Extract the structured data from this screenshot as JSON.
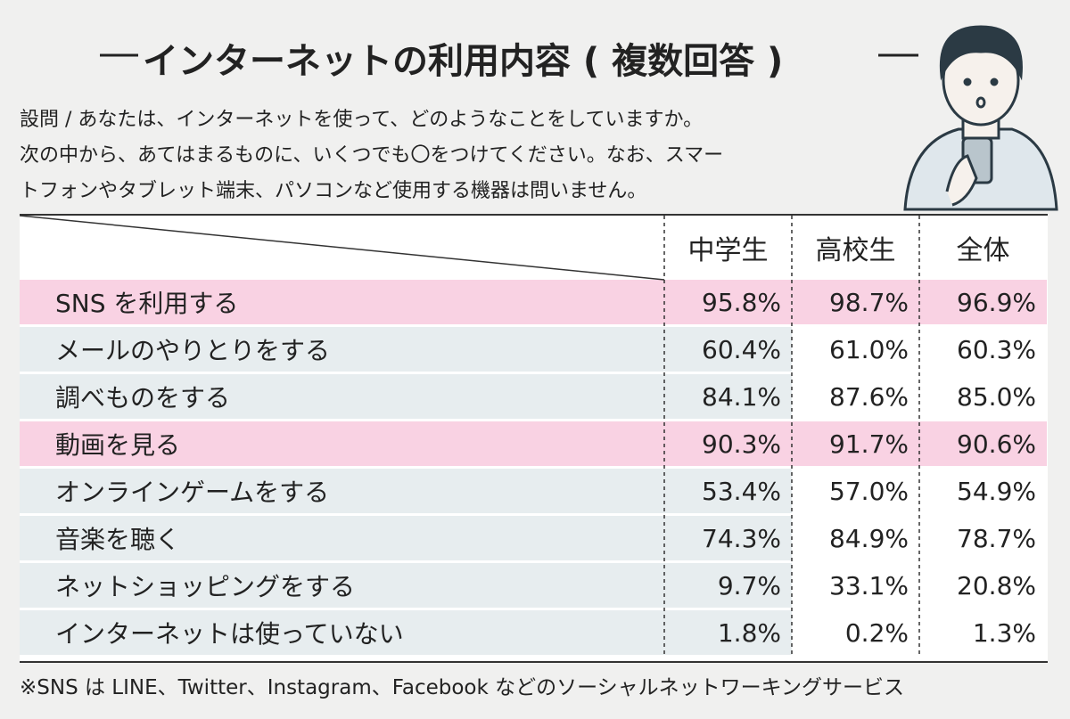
{
  "header": {
    "title": "インターネットの利用内容 ( 複数回答 )",
    "question": [
      "設問 / あなたは、インターネットを使って、どのようなことをしていますか。",
      "次の中から、あてはまるものに、いくつでも〇をつけてください。なお、スマー",
      "トフォンやタブレット端末、パソコンなど使用する機器は問いません。"
    ]
  },
  "table": {
    "columns": [
      "中学生",
      "高校生",
      "全体"
    ],
    "rows": [
      {
        "label": "SNS を利用する",
        "values": [
          "95.8%",
          "98.7%",
          "96.9%"
        ],
        "background": "#f9d2e3"
      },
      {
        "label": "メールのやりとりをする",
        "values": [
          "60.4%",
          "61.0%",
          "60.3%"
        ],
        "background": "#e7edef"
      },
      {
        "label": "調べものをする",
        "values": [
          "84.1%",
          "87.6%",
          "85.0%"
        ],
        "background": "#e7edef"
      },
      {
        "label": "動画を見る",
        "values": [
          "90.3%",
          "91.7%",
          "90.6%"
        ],
        "background": "#f9d2e3"
      },
      {
        "label": "オンラインゲームをする",
        "values": [
          "53.4%",
          "57.0%",
          "54.9%"
        ],
        "background": "#e7edef"
      },
      {
        "label": "音楽を聴く",
        "values": [
          "74.3%",
          "84.9%",
          "78.7%"
        ],
        "background": "#e7edef"
      },
      {
        "label": "ネットショッピングをする",
        "values": [
          "9.7%",
          "33.1%",
          "20.8%"
        ],
        "background": "#e7edef"
      },
      {
        "label": "インターネットは使っていない",
        "values": [
          "1.8%",
          "0.2%",
          "1.3%"
        ],
        "background": "#e7edef"
      }
    ]
  },
  "footnote": "※SNS は LINE、Twitter、Instagram、Facebook などのソーシャルネットワーキングサービス"
}
